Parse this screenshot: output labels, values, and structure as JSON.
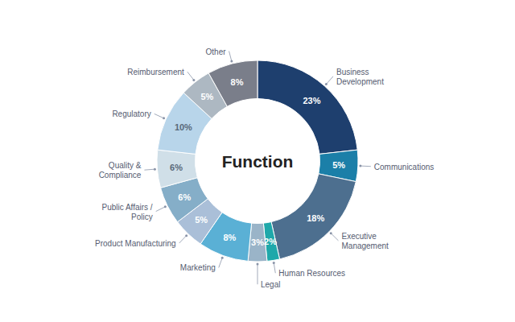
{
  "chart_data": {
    "type": "pie",
    "categories": [
      "Business\nDevelopment",
      "Communications",
      "Executive\nManagement",
      "Human Resources",
      "Legal",
      "Marketing",
      "Product Manufacturing",
      "Public Affairs /\nPolicy",
      "Quality &\nCompliance",
      "Regulatory",
      "Reimbursement",
      "Other"
    ],
    "values": [
      23,
      5,
      18,
      2,
      3,
      8,
      5,
      6,
      6,
      10,
      5,
      8
    ],
    "value_labels": [
      "23%",
      "5%",
      "18%",
      "2%",
      "3%",
      "8%",
      "5%",
      "6%",
      "6%",
      "10%",
      "5%",
      "8%"
    ],
    "colors": [
      "#1e3f6e",
      "#1b7fa8",
      "#4d6f8f",
      "#1fa8aa",
      "#9ab4c8",
      "#5ab0d5",
      "#aabfd8",
      "#85aec8",
      "#d0dfe8",
      "#b8d5ea",
      "#adb8c2",
      "#7a7e8a"
    ],
    "data_labels": true,
    "annotations": [
      "Function"
    ]
  }
}
